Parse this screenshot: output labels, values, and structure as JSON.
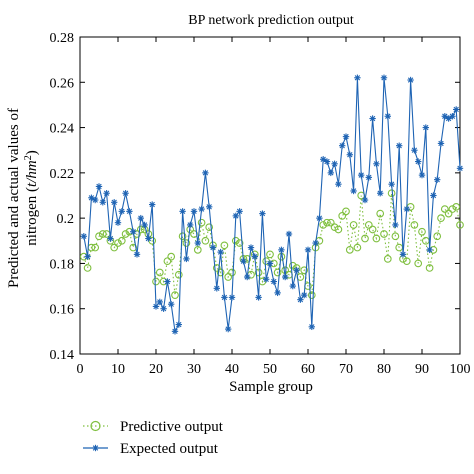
{
  "chart_data": {
    "type": "line",
    "title": "BP network prediction output",
    "xlabel": "Sample group",
    "ylabel_line1": "Predicted and actual values of",
    "ylabel_line2_prefix": "nitrogen (",
    "ylabel_unit": "t/hm",
    "ylabel_sup": "2",
    "ylabel_line2_suffix": ")",
    "xlim": [
      0,
      100
    ],
    "ylim": [
      0.14,
      0.28
    ],
    "xticks": [
      0,
      10,
      20,
      30,
      40,
      50,
      60,
      70,
      80,
      90,
      100
    ],
    "xtick_labels": [
      "0",
      "10",
      "20",
      "30",
      "40",
      "50",
      "60",
      "70",
      "80",
      "90",
      "100"
    ],
    "yticks": [
      0.14,
      0.16,
      0.18,
      0.2,
      0.22,
      0.24,
      0.26,
      0.28
    ],
    "ytick_labels": [
      "0.14",
      "0.16",
      "0.18",
      "0.2",
      "0.22",
      "0.24",
      "0.26",
      "0.28"
    ],
    "grid": false,
    "legend_position": "bottom-left, below plot",
    "x": [
      1,
      2,
      3,
      4,
      5,
      6,
      7,
      8,
      9,
      10,
      11,
      12,
      13,
      14,
      15,
      16,
      17,
      18,
      19,
      20,
      21,
      22,
      23,
      24,
      25,
      26,
      27,
      28,
      29,
      30,
      31,
      32,
      33,
      34,
      35,
      36,
      37,
      38,
      39,
      40,
      41,
      42,
      43,
      44,
      45,
      46,
      47,
      48,
      49,
      50,
      51,
      52,
      53,
      54,
      55,
      56,
      57,
      58,
      59,
      60,
      61,
      62,
      63,
      64,
      65,
      66,
      67,
      68,
      69,
      70,
      71,
      72,
      73,
      74,
      75,
      76,
      77,
      78,
      79,
      80,
      81,
      82,
      83,
      84,
      85,
      86,
      87,
      88,
      89,
      90,
      91,
      92,
      93,
      94,
      95,
      96,
      97,
      98,
      99,
      100
    ],
    "series": [
      {
        "name": "Predictive output",
        "color": "#7fbf3f",
        "style": "dotted-circle",
        "values": [
          0.183,
          0.178,
          0.187,
          0.187,
          0.192,
          0.193,
          0.193,
          0.19,
          0.187,
          0.189,
          0.19,
          0.193,
          0.194,
          0.187,
          0.193,
          0.195,
          0.195,
          0.193,
          0.19,
          0.172,
          0.176,
          0.172,
          0.181,
          0.183,
          0.166,
          0.175,
          0.192,
          0.189,
          0.195,
          0.193,
          0.186,
          0.198,
          0.19,
          0.196,
          0.188,
          0.178,
          0.176,
          0.188,
          0.174,
          0.176,
          0.19,
          0.189,
          0.182,
          0.182,
          0.175,
          0.184,
          0.176,
          0.172,
          0.181,
          0.184,
          0.18,
          0.176,
          0.183,
          0.177,
          0.175,
          0.179,
          0.178,
          0.174,
          0.177,
          0.17,
          0.166,
          0.187,
          0.19,
          0.197,
          0.198,
          0.198,
          0.196,
          0.195,
          0.201,
          0.203,
          0.186,
          0.197,
          0.187,
          0.21,
          0.191,
          0.197,
          0.195,
          0.191,
          0.202,
          0.193,
          0.182,
          0.211,
          0.192,
          0.187,
          0.182,
          0.181,
          0.205,
          0.197,
          0.18,
          0.194,
          0.19,
          0.178,
          0.186,
          0.192,
          0.2,
          0.204,
          0.202,
          0.204,
          0.205,
          0.197
        ]
      },
      {
        "name": "Expected output",
        "color": "#1f64b4",
        "style": "solid-star",
        "values": [
          0.192,
          0.183,
          0.209,
          0.208,
          0.214,
          0.207,
          0.211,
          0.191,
          0.207,
          0.198,
          0.203,
          0.211,
          0.203,
          0.194,
          0.184,
          0.2,
          0.197,
          0.191,
          0.206,
          0.161,
          0.163,
          0.16,
          0.172,
          0.162,
          0.15,
          0.153,
          0.203,
          0.182,
          0.197,
          0.203,
          0.189,
          0.204,
          0.22,
          0.205,
          0.187,
          0.169,
          0.185,
          0.165,
          0.151,
          0.165,
          0.201,
          0.203,
          0.181,
          0.174,
          0.187,
          0.183,
          0.165,
          0.202,
          0.173,
          0.18,
          0.172,
          0.167,
          0.186,
          0.174,
          0.193,
          0.17,
          0.177,
          0.164,
          0.166,
          0.186,
          0.152,
          0.189,
          0.2,
          0.226,
          0.225,
          0.22,
          0.224,
          0.215,
          0.232,
          0.236,
          0.228,
          0.212,
          0.262,
          0.219,
          0.208,
          0.218,
          0.244,
          0.224,
          0.211,
          0.262,
          0.245,
          0.215,
          0.197,
          0.232,
          0.184,
          0.204,
          0.261,
          0.23,
          0.225,
          0.219,
          0.24,
          0.186,
          0.21,
          0.217,
          0.233,
          0.245,
          0.244,
          0.245,
          0.248,
          0.222
        ]
      }
    ]
  }
}
